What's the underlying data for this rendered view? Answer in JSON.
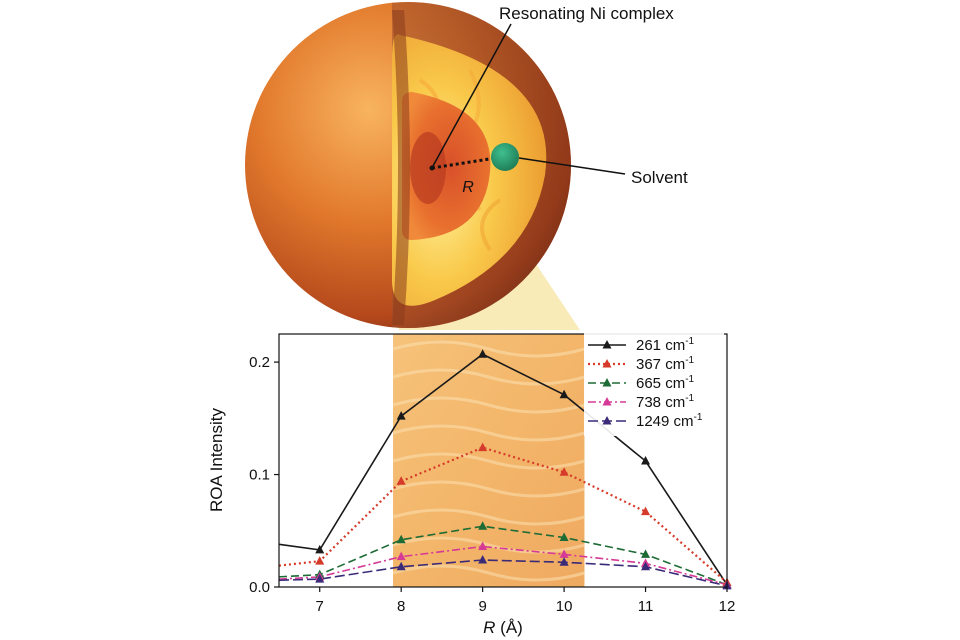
{
  "annotations": {
    "complex_label": "Resonating Ni complex",
    "solvent_label": "Solvent",
    "radius_label": "R"
  },
  "colors": {
    "s261": "#1a1a1a",
    "s367": "#d63a2a",
    "s665": "#1d6b35",
    "s738": "#d63a96",
    "s1249": "#3a2a78"
  },
  "chart_data": {
    "type": "line",
    "title": "",
    "xlabel_italic": "R",
    "xlabel_rest": " (Å)",
    "ylabel": "ROA Intensity",
    "xlim": [
      6.5,
      12.0
    ],
    "ylim": [
      0.0,
      0.225
    ],
    "xticks": [
      7,
      8,
      9,
      10,
      11,
      12
    ],
    "yticks": [
      0.0,
      0.1,
      0.2
    ],
    "ytick_labels": [
      "0.0",
      "0.1",
      "0.2"
    ],
    "highlight_band": [
      7.9,
      10.25
    ],
    "legend_position": "top-right",
    "x": [
      6.5,
      7,
      8,
      9,
      10,
      11,
      12
    ],
    "series": [
      {
        "name_main": "261 cm",
        "name_sup": "-1",
        "color_key": "s261",
        "dash": "",
        "values": [
          0.038,
          0.033,
          0.152,
          0.207,
          0.171,
          0.112,
          0.002
        ]
      },
      {
        "name_main": "367 cm",
        "name_sup": "-1",
        "color_key": "s367",
        "dash": "2,3",
        "values": [
          0.019,
          0.023,
          0.094,
          0.124,
          0.102,
          0.067,
          0.004
        ]
      },
      {
        "name_main": "665 cm",
        "name_sup": "-1",
        "color_key": "s665",
        "dash": "8,4",
        "values": [
          0.009,
          0.011,
          0.042,
          0.054,
          0.044,
          0.029,
          0.002
        ]
      },
      {
        "name_main": "738 cm",
        "name_sup": "-1",
        "color_key": "s738",
        "dash": "8,3,2,3",
        "values": [
          0.007,
          0.009,
          0.027,
          0.036,
          0.029,
          0.021,
          0.002
        ]
      },
      {
        "name_main": "1249 cm",
        "name_sup": "-1",
        "color_key": "s1249",
        "dash": "10,4",
        "values": [
          0.006,
          0.007,
          0.018,
          0.024,
          0.022,
          0.018,
          0.001
        ]
      }
    ]
  }
}
